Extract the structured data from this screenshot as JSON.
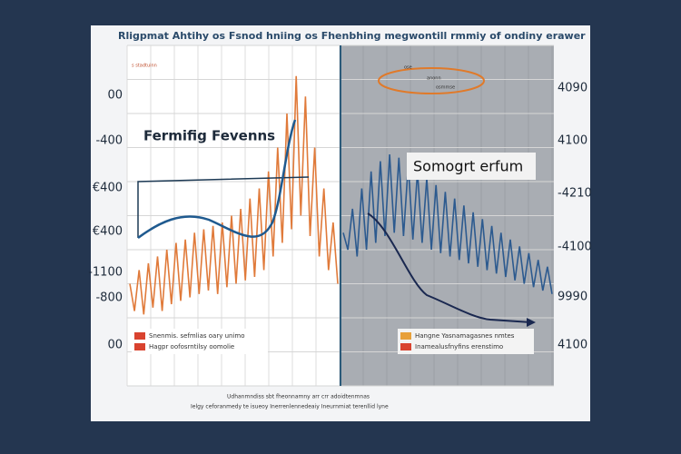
{
  "chart_data": {
    "type": "line",
    "title": "Rligpmat Ahtihy os Fsnod hniing os Fhenbhing  megwontill rmmiy of ondiny erawer",
    "subtitle": "s stadtuinn",
    "ylim": [
      0,
      100
    ],
    "left_labels": [
      "00",
      "-400",
      "€400",
      "€400",
      "-1100",
      "-800",
      "00"
    ],
    "right_labels": [
      "4090",
      "4100",
      "-4210",
      "-4100",
      "9990",
      "4100"
    ],
    "annotations": [
      "Fermifig Fevenns",
      "Somogrt erfum"
    ],
    "callout": [
      "ose",
      "anonn",
      "osmmse"
    ],
    "series": [
      {
        "color": "#e07a3a",
        "values": [
          30,
          22,
          34,
          21,
          36,
          23,
          38,
          22,
          40,
          24,
          42,
          25,
          43,
          26,
          45,
          27,
          46,
          28,
          47,
          27,
          48,
          29,
          50,
          30,
          52,
          31,
          55,
          32,
          58,
          34,
          63,
          38,
          70,
          42,
          80,
          46,
          91,
          50,
          85,
          44,
          70,
          38,
          58,
          34,
          48,
          30
        ]
      },
      {
        "color": "#2c5a8f",
        "values": [
          45,
          40,
          52,
          38,
          58,
          40,
          63,
          42,
          66,
          44,
          68,
          45,
          67,
          44,
          65,
          43,
          63,
          42,
          61,
          40,
          59,
          39,
          57,
          38,
          55,
          37,
          53,
          36,
          51,
          35,
          49,
          34,
          47,
          33,
          45,
          32,
          43,
          31,
          41,
          30,
          39,
          29,
          37,
          28,
          35,
          27
        ]
      }
    ],
    "legend_left": [
      {
        "label": "Snenmis. sefmlias oary unimo",
        "color": "#d9432f"
      },
      {
        "label": "Hagpr oofosrntilsy oomolie",
        "color": "#d9432f"
      }
    ],
    "legend_right": [
      {
        "label": "Hangne Yasnamagasnes nmtes",
        "color": "#e8a03a"
      },
      {
        "label": "Inamealusfnyfins erenstimo",
        "color": "#d9432f"
      }
    ],
    "footer": [
      "Udhanmndiss sbt fheonnamny arr crr adoidtenmnas",
      "Ielgy ceforanmedy te isueoy Inerrenlennedeaiy Ineurnmiat terenllid lyne"
    ]
  }
}
